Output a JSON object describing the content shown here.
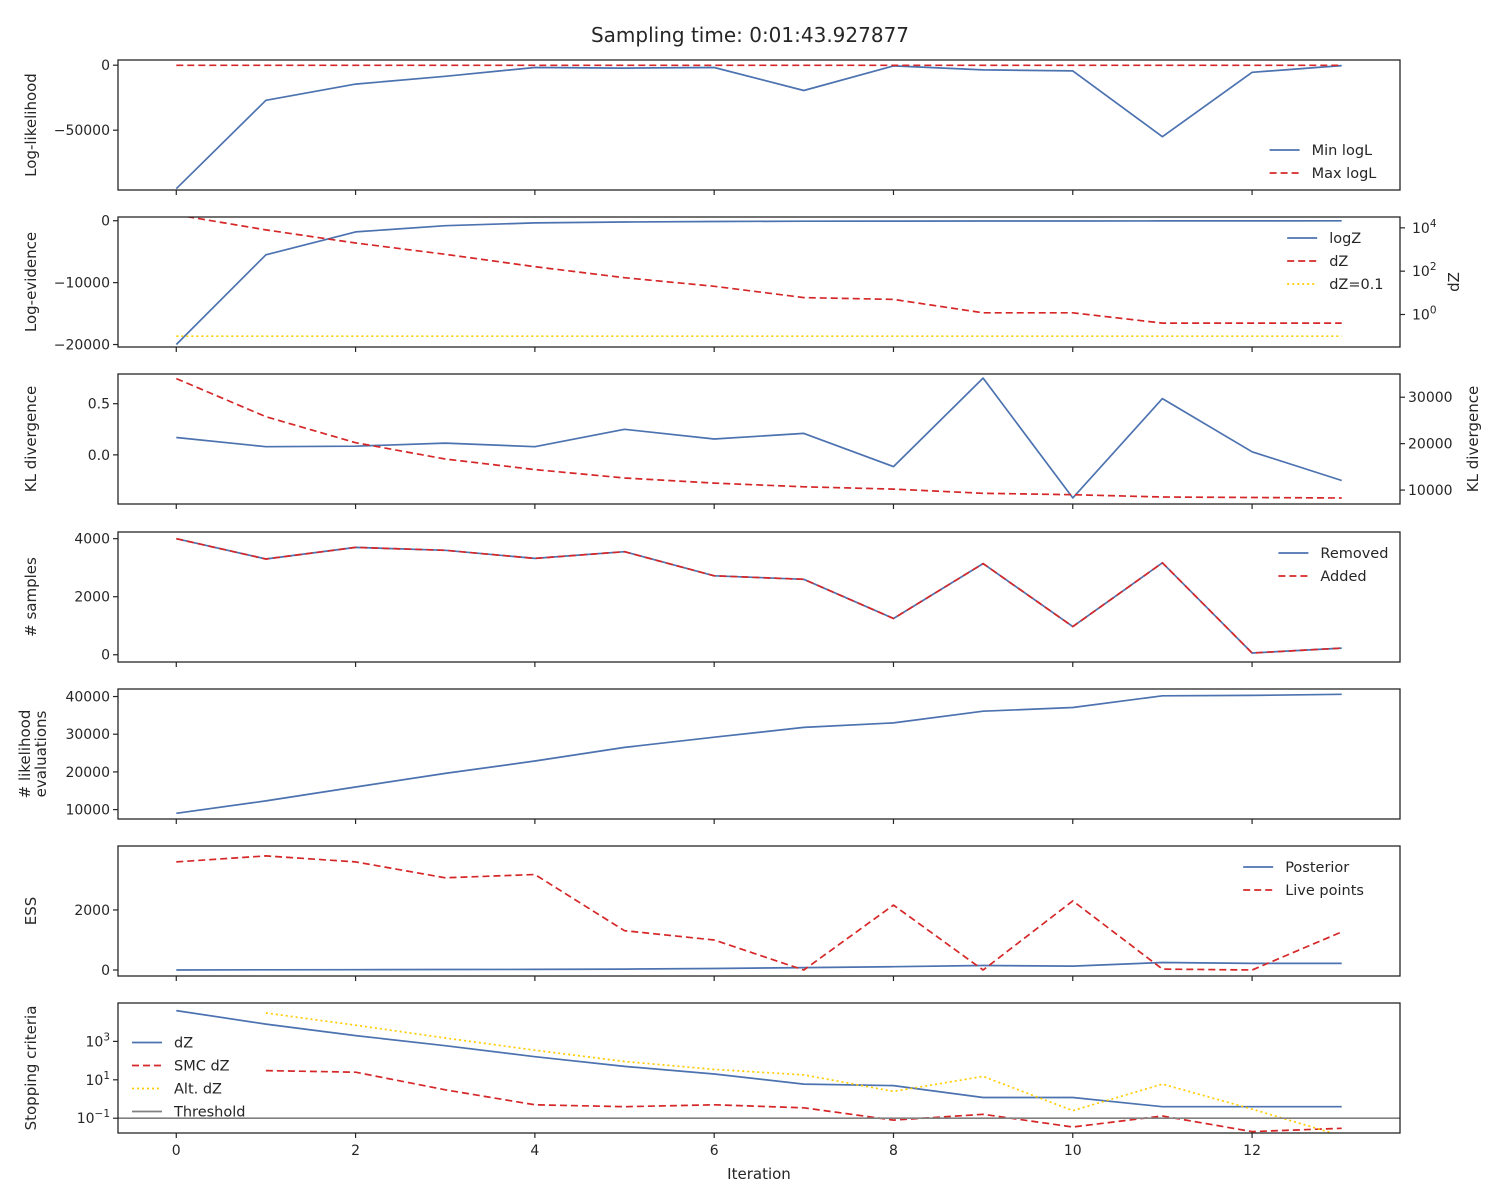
{
  "figure": {
    "title": "Sampling time: 0:01:43.927877",
    "xlabel": "Iteration",
    "colors": {
      "blue": "#4c72b0",
      "red": "#d62728",
      "gold": "#ffcc00",
      "gray": "#808080",
      "axes": "#262626"
    }
  },
  "chart_data": [
    {
      "type": "line",
      "ylabel": "Log-likelihood",
      "x": [
        0,
        1,
        2,
        3,
        4,
        5,
        6,
        7,
        8,
        9,
        10,
        11,
        12,
        13
      ],
      "ylim": [
        -96000,
        4000
      ],
      "yticks": [
        0,
        -50000
      ],
      "ytick_labels": [
        "0",
        "−50000"
      ],
      "legend_position": "lower-right",
      "series": [
        {
          "name": "Min logL",
          "style": "solid",
          "color": "#4c72b0",
          "values": [
            -95000,
            -27000,
            -14500,
            -8500,
            -1800,
            -2200,
            -1800,
            -19500,
            -500,
            -3600,
            -4400,
            -55000,
            -5500,
            -300
          ]
        },
        {
          "name": "Max logL",
          "style": "dashed",
          "color": "#d62728",
          "values": [
            -100,
            -100,
            -100,
            -100,
            -100,
            -100,
            -100,
            -100,
            -100,
            -100,
            -100,
            -100,
            -100,
            -100
          ]
        }
      ]
    },
    {
      "type": "line",
      "ylabel": "Log-evidence",
      "right_ylabel": "dZ",
      "right_scale": "log",
      "x": [
        0,
        1,
        2,
        3,
        4,
        5,
        6,
        7,
        8,
        9,
        10,
        11,
        12,
        13
      ],
      "ylim": [
        -20400,
        600
      ],
      "yticks": [
        0,
        -10000,
        -20000
      ],
      "ytick_labels": [
        "0",
        "−10000",
        "−20000"
      ],
      "right_ylim_log10": [
        -1.5,
        4.5
      ],
      "right_ticks_log10": [
        4,
        2,
        0
      ],
      "right_tick_labels": [
        [
          "10",
          "4"
        ],
        [
          "10",
          "2"
        ],
        [
          "10",
          "0"
        ]
      ],
      "legend_position": "upper-right",
      "series": [
        {
          "name": "logZ",
          "style": "solid",
          "color": "#4c72b0",
          "axis": "left",
          "values": [
            -20000,
            -5500,
            -1800,
            -800,
            -350,
            -200,
            -120,
            -80,
            -60,
            -50,
            -40,
            -30,
            -25,
            -20
          ]
        },
        {
          "name": "dZ",
          "style": "dashed",
          "color": "#d62728",
          "axis": "right",
          "values": [
            40000,
            8000,
            2000,
            600,
            160,
            50,
            20,
            6,
            5,
            1.2,
            1.2,
            0.4,
            0.4,
            0.4
          ]
        },
        {
          "name": "dZ=0.1",
          "style": "dotted",
          "color": "#ffcc00",
          "axis": "right",
          "values": [
            0.1,
            0.1,
            0.1,
            0.1,
            0.1,
            0.1,
            0.1,
            0.1,
            0.1,
            0.1,
            0.1,
            0.1,
            0.1,
            0.1
          ]
        }
      ]
    },
    {
      "type": "line",
      "ylabel": "KL divergence",
      "right_ylabel": "KL divergence",
      "x": [
        0,
        1,
        2,
        3,
        4,
        5,
        6,
        7,
        8,
        9,
        10,
        11,
        12,
        13
      ],
      "ylim": [
        -0.48,
        0.79
      ],
      "yticks": [
        0.5,
        0.0
      ],
      "ytick_labels": [
        "0.5",
        "0.0"
      ],
      "right_ylim": [
        7000,
        35000
      ],
      "right_ticks": [
        30000,
        20000,
        10000
      ],
      "right_tick_labels": [
        "30000",
        "20000",
        "10000"
      ],
      "series": [
        {
          "name": "",
          "style": "solid",
          "color": "#4c72b0",
          "axis": "left",
          "values": [
            0.17,
            0.08,
            0.085,
            0.115,
            0.08,
            0.25,
            0.155,
            0.21,
            -0.115,
            0.75,
            -0.42,
            0.55,
            0.03,
            -0.25
          ]
        },
        {
          "name": "",
          "style": "dashed",
          "color": "#d62728",
          "axis": "right",
          "values": [
            34000,
            25800,
            20200,
            16700,
            14400,
            12600,
            11500,
            10700,
            10200,
            9300,
            9000,
            8500,
            8400,
            8300
          ]
        }
      ]
    },
    {
      "type": "line",
      "ylabel": "# samples",
      "x": [
        0,
        1,
        2,
        3,
        4,
        5,
        6,
        7,
        8,
        9,
        10,
        11,
        12,
        13
      ],
      "ylim": [
        -250,
        4230
      ],
      "yticks": [
        4000,
        2000,
        0
      ],
      "ytick_labels": [
        "4000",
        "2000",
        "0"
      ],
      "legend_position": "upper-right",
      "series": [
        {
          "name": "Removed",
          "style": "solid",
          "color": "#4c72b0",
          "values": [
            4000,
            3300,
            3700,
            3600,
            3320,
            3550,
            2720,
            2600,
            1250,
            3140,
            970,
            3170,
            60,
            230
          ]
        },
        {
          "name": "Added",
          "style": "dashed",
          "color": "#d62728",
          "values": [
            4000,
            3300,
            3700,
            3600,
            3320,
            3550,
            2720,
            2600,
            1250,
            3140,
            970,
            3170,
            60,
            230
          ]
        }
      ]
    },
    {
      "type": "line",
      "ylabel": "# likelihood\nevaluations",
      "x": [
        0,
        1,
        2,
        3,
        4,
        5,
        6,
        7,
        8,
        9,
        10,
        11,
        12,
        13
      ],
      "ylim": [
        7500,
        42000
      ],
      "yticks": [
        40000,
        30000,
        20000,
        10000
      ],
      "ytick_labels": [
        "40000",
        "30000",
        "20000",
        "10000"
      ],
      "series": [
        {
          "name": "",
          "style": "solid",
          "color": "#4c72b0",
          "values": [
            9000,
            12300,
            16000,
            19600,
            22900,
            26500,
            29200,
            31800,
            33000,
            36100,
            37100,
            40200,
            40300,
            40600
          ]
        }
      ]
    },
    {
      "type": "line",
      "ylabel": "ESS",
      "x": [
        0,
        1,
        2,
        3,
        4,
        5,
        6,
        7,
        8,
        9,
        10,
        11,
        12,
        13
      ],
      "ylim": [
        -200,
        4130
      ],
      "yticks": [
        2000,
        0
      ],
      "ytick_labels": [
        "2000",
        "0"
      ],
      "legend_position": "upper-right",
      "series": [
        {
          "name": "Posterior",
          "style": "solid",
          "color": "#4c72b0",
          "values": [
            0,
            5,
            10,
            15,
            20,
            30,
            50,
            80,
            110,
            150,
            130,
            250,
            220,
            220
          ]
        },
        {
          "name": "Live points",
          "style": "dashed",
          "color": "#d62728",
          "values": [
            3600,
            3800,
            3600,
            3070,
            3180,
            1310,
            1000,
            0,
            2160,
            0,
            2300,
            30,
            0,
            1270
          ]
        }
      ]
    },
    {
      "type": "line",
      "ylabel": "Stopping criteria",
      "yscale": "log",
      "x": [
        0,
        1,
        2,
        3,
        4,
        5,
        6,
        7,
        8,
        9,
        10,
        11,
        12,
        13
      ],
      "ylim_log10": [
        -1.77,
        5.0
      ],
      "yticks_log10": [
        3,
        1,
        -1
      ],
      "ytick_labels": [
        [
          "10",
          "3"
        ],
        [
          "10",
          "1"
        ],
        [
          "10",
          "−1"
        ]
      ],
      "legend_position": "center-left",
      "series": [
        {
          "name": "dZ",
          "style": "solid",
          "color": "#4c72b0",
          "values": [
            40000,
            8000,
            2000,
            600,
            160,
            50,
            20,
            6,
            5,
            1.2,
            1.2,
            0.4,
            0.4,
            0.4
          ]
        },
        {
          "name": "SMC dZ",
          "style": "dashed",
          "color": "#d62728",
          "values": [
            null,
            30,
            25,
            3,
            0.5,
            0.4,
            0.5,
            0.35,
            0.08,
            0.16,
            0.035,
            0.13,
            0.02,
            0.03
          ]
        },
        {
          "name": "Alt. dZ",
          "style": "dotted",
          "color": "#ffcc00",
          "values": [
            null,
            30000,
            7000,
            1500,
            350,
            90,
            35,
            18,
            2.5,
            15,
            0.25,
            6,
            0.3,
            0.012
          ]
        },
        {
          "name": "Threshold",
          "style": "solid",
          "color": "#808080",
          "hline": 0.1
        }
      ]
    }
  ]
}
